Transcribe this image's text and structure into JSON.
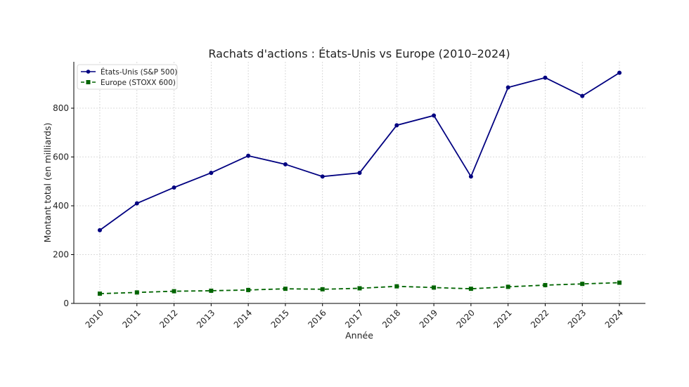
{
  "chart_data": {
    "type": "line",
    "title": "Rachats d'actions : États-Unis vs Europe (2010–2024)",
    "xlabel": "Année",
    "ylabel": "Montant total (en milliards)",
    "x": [
      2010,
      2011,
      2012,
      2013,
      2014,
      2015,
      2016,
      2017,
      2018,
      2019,
      2020,
      2021,
      2022,
      2023,
      2024
    ],
    "xlim": [
      2009.3,
      2024.7
    ],
    "ylim": [
      0,
      990
    ],
    "yticks": [
      0,
      200,
      400,
      600,
      800
    ],
    "grid": true,
    "legend_position": "top-left",
    "series": [
      {
        "name": "États-Unis (S&P 500)",
        "color": "#000080",
        "marker": "circle",
        "linestyle": "solid",
        "values": [
          300,
          410,
          475,
          535,
          605,
          570,
          520,
          535,
          730,
          770,
          520,
          885,
          925,
          850,
          945
        ]
      },
      {
        "name": "Europe (STOXX 600)",
        "color": "#006400",
        "marker": "square",
        "linestyle": "dashed",
        "values": [
          40,
          45,
          50,
          52,
          55,
          60,
          58,
          62,
          70,
          65,
          60,
          68,
          75,
          80,
          85
        ]
      }
    ]
  }
}
